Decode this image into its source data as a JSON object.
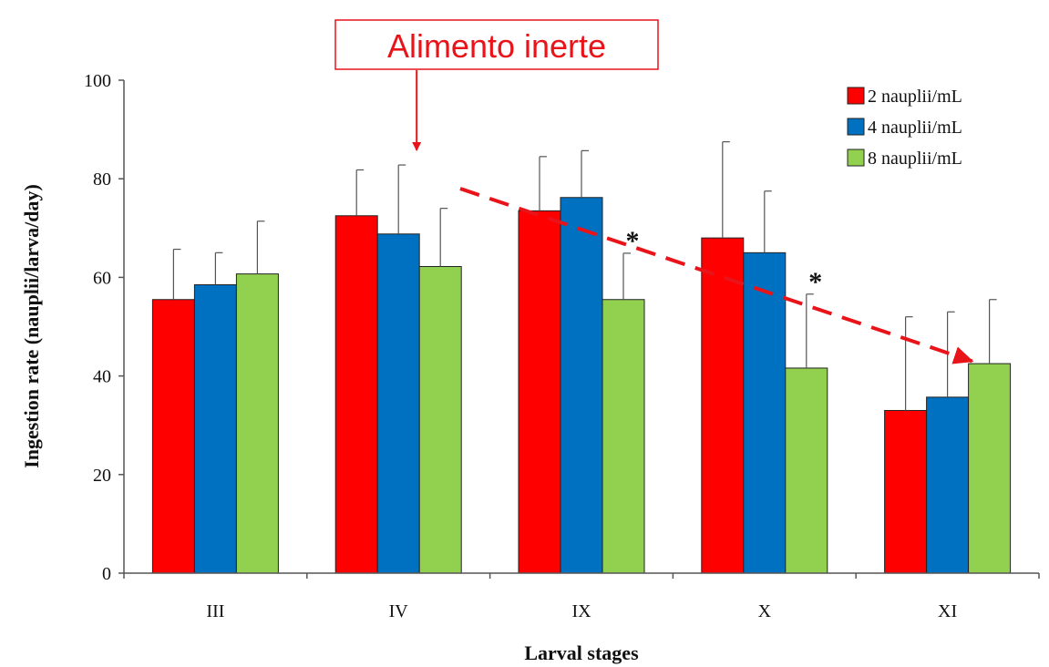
{
  "chart_data": {
    "type": "bar",
    "xlabel": "Larval stages",
    "ylabel": "Ingestion rate (nauplii/larva/day)",
    "ylim": [
      0,
      100
    ],
    "yticks": [
      0,
      20,
      40,
      60,
      80,
      100
    ],
    "categories": [
      "III",
      "IV",
      "IX",
      "X",
      "XI"
    ],
    "legend_position": "top-right",
    "series": [
      {
        "name": "2 nauplii/mL",
        "color": "#ff0000",
        "values": [
          55.5,
          72.5,
          73.5,
          68,
          33
        ],
        "errors": [
          10.2,
          9.3,
          11,
          19.5,
          19
        ]
      },
      {
        "name": "4 nauplii/mL",
        "color": "#0070c0",
        "values": [
          58.5,
          68.8,
          76.2,
          65,
          35.7
        ],
        "errors": [
          6.5,
          14,
          9.5,
          12.5,
          17.3
        ]
      },
      {
        "name": "8 nauplii/mL",
        "color": "#92d050",
        "values": [
          60.7,
          62.2,
          55.5,
          41.6,
          42.5
        ],
        "errors": [
          10.7,
          11.8,
          9.4,
          15,
          13
        ]
      }
    ],
    "significance": [
      {
        "category": "IX",
        "series": "8 nauplii/mL",
        "label": "*"
      },
      {
        "category": "X",
        "series": "8 nauplii/mL",
        "label": "*"
      }
    ],
    "annotation": {
      "text": "Alimento inerte",
      "color": "#e8141a",
      "points_to_category": "IV"
    },
    "trend_arrow": {
      "style": "dashed",
      "color": "#e8141a",
      "from_category": "IX",
      "to_category": "XI"
    }
  }
}
